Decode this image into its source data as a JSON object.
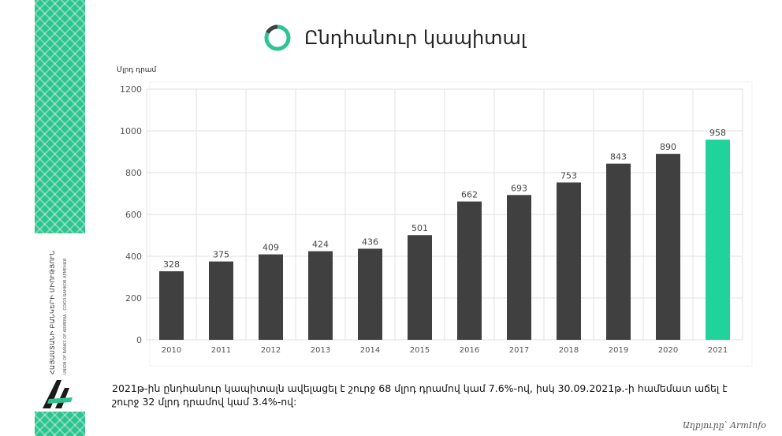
{
  "title": "Ընդհանուր կապիտալ",
  "org": {
    "name": "ՀԱՅԱՍՏԱՆԻ ԲԱՆԿԵՐԻ ՄԻՈՒԹՅՈՒՆ",
    "name_sub": "UNION OF BANKS OF ARMENIA · СОЮЗ БАНКОВ АРМЕНИИ"
  },
  "footnote": "2021թ-ին ընդհանուր կապիտալն ավելացել է շուրջ 68 մլրդ դրամով կամ 7.6%-ով, իսկ 30.09.2021թ.-ի համեմատ աճել է շուրջ 32 մլրդ դրամով կամ 3.4%-ով:",
  "source": "Աղբյուրը՝ ArmInfo",
  "colors": {
    "bar": "#404040",
    "highlight": "#20d39a",
    "accent": "#2ec48f"
  },
  "chart_data": {
    "type": "bar",
    "ylabel": "Մլրդ դրամ",
    "categories": [
      "2010",
      "2011",
      "2012",
      "2013",
      "2014",
      "2015",
      "2016",
      "2017",
      "2018",
      "2019",
      "2020",
      "2021"
    ],
    "values": [
      328,
      375,
      409,
      424,
      436,
      501,
      662,
      693,
      753,
      843,
      890,
      958
    ],
    "ylim": [
      0,
      1200
    ],
    "yticks": [
      0,
      200,
      400,
      600,
      800,
      1000,
      1200
    ],
    "highlight_category": "2021",
    "grid": true,
    "data_labels": true
  }
}
